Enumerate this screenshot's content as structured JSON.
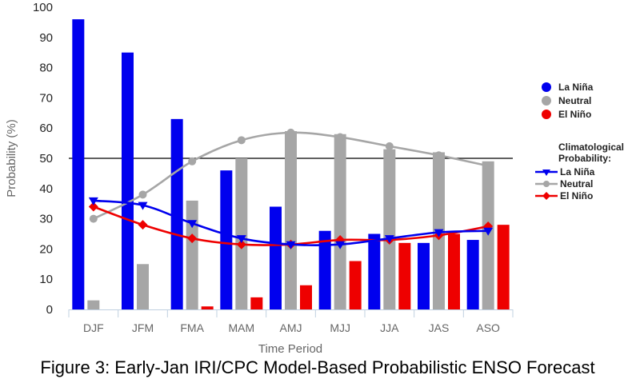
{
  "chart_data": {
    "type": "bar",
    "caption": "Figure 3: Early-Jan IRI/CPC Model-Based Probabilistic ENSO Forecast",
    "xlabel": "Time Period",
    "ylabel": "Probability (%)",
    "ylim": [
      0,
      100
    ],
    "yticks": [
      0,
      10,
      20,
      30,
      40,
      50,
      60,
      70,
      80,
      90,
      100
    ],
    "reference_line": 50,
    "categories": [
      "DJF",
      "JFM",
      "FMA",
      "MAM",
      "AMJ",
      "MJJ",
      "JJA",
      "JAS",
      "ASO"
    ],
    "series": [
      {
        "name": "La Niña",
        "kind": "bar",
        "color": "#0000ee",
        "values": [
          96,
          85,
          63,
          46,
          34,
          26,
          25,
          22,
          23
        ]
      },
      {
        "name": "Neutral",
        "kind": "bar",
        "color": "#a6a6a6",
        "values": [
          3,
          15,
          36,
          50,
          59,
          58,
          53,
          52,
          49
        ]
      },
      {
        "name": "El Niño",
        "kind": "bar",
        "color": "#ee0000",
        "values": [
          0,
          0,
          1,
          4,
          8,
          16,
          22,
          25,
          28
        ]
      }
    ],
    "climatology_title": "Climatological Probability:",
    "climatology": [
      {
        "name": "La Niña",
        "kind": "line",
        "marker": "triangle-down",
        "color": "#0000ee",
        "values": [
          36,
          34.5,
          28.5,
          23.5,
          21.5,
          21.5,
          23.5,
          25.5,
          26
        ]
      },
      {
        "name": "Neutral",
        "kind": "line",
        "marker": "circle",
        "color": "#a6a6a6",
        "values": [
          30,
          38,
          49,
          56,
          58.5,
          57,
          54,
          51,
          47.5
        ]
      },
      {
        "name": "El Niño",
        "kind": "line",
        "marker": "diamond",
        "color": "#ee0000",
        "values": [
          34,
          28,
          23.5,
          21.5,
          21.5,
          23,
          23,
          24.5,
          27.5
        ]
      }
    ],
    "legend_position": "right"
  }
}
